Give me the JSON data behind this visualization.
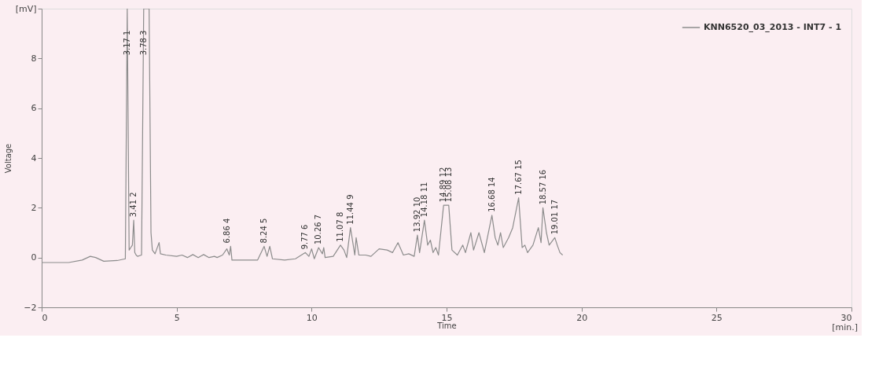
{
  "chart_data": {
    "type": "line",
    "xlabel": "Time",
    "ylabel": "Voltage",
    "xlim": [
      0,
      30
    ],
    "xticks": [
      0,
      5,
      10,
      15,
      20,
      25,
      30
    ],
    "ylim": [
      -2,
      10
    ],
    "yticks": [
      -2,
      0,
      2,
      4,
      6,
      8,
      {
        "value": 10,
        "label": "[mV]"
      }
    ],
    "grid": false,
    "legend": "top right",
    "marker": "none",
    "line_style": "solid",
    "series": [
      {
        "name": "KNN6520_03_2013 - INT7 - 1",
        "color": "#8c8c8c",
        "x": [
          0,
          1,
          1.5,
          1.8,
          2.0,
          2.3,
          2.8,
          3.1,
          3.17,
          3.24,
          3.3,
          3.36,
          3.41,
          3.45,
          3.5,
          3.55,
          3.7,
          3.78,
          3.98,
          4.05,
          4.1,
          4.2,
          4.35,
          4.4,
          4.6,
          5.0,
          5.2,
          5.4,
          5.6,
          5.8,
          6.0,
          6.2,
          6.4,
          6.5,
          6.7,
          6.86,
          6.95,
          7.0,
          7.05,
          7.5,
          8.0,
          8.24,
          8.35,
          8.45,
          8.55,
          9.0,
          9.4,
          9.77,
          9.9,
          10.0,
          10.1,
          10.26,
          10.4,
          10.45,
          10.5,
          10.8,
          11.07,
          11.2,
          11.3,
          11.44,
          11.6,
          11.65,
          11.75,
          12.0,
          12.2,
          12.5,
          12.8,
          13.0,
          13.2,
          13.4,
          13.6,
          13.8,
          13.92,
          14.0,
          14.18,
          14.3,
          14.4,
          14.5,
          14.6,
          14.7,
          14.89,
          15.08,
          15.2,
          15.4,
          15.6,
          15.7,
          15.9,
          16.0,
          16.2,
          16.4,
          16.68,
          16.8,
          16.9,
          17.0,
          17.1,
          17.3,
          17.45,
          17.67,
          17.8,
          17.9,
          18.0,
          18.2,
          18.4,
          18.5,
          18.57,
          18.7,
          18.8,
          19.01,
          19.1,
          19.2,
          19.3
        ],
        "values": [
          -0.2,
          -0.2,
          -0.1,
          0.05,
          0.0,
          -0.15,
          -0.12,
          -0.05,
          10,
          0.3,
          0.4,
          0.5,
          1.5,
          0.2,
          0.1,
          0.05,
          0.1,
          10,
          10,
          1.0,
          0.3,
          0.15,
          0.6,
          0.15,
          0.1,
          0.05,
          0.1,
          0.0,
          0.12,
          0.0,
          0.12,
          0.0,
          0.05,
          0.0,
          0.1,
          0.35,
          0.1,
          0.45,
          -0.1,
          -0.1,
          -0.1,
          0.45,
          0.05,
          0.45,
          -0.05,
          -0.1,
          -0.05,
          0.2,
          0.05,
          0.35,
          -0.05,
          0.4,
          0.15,
          0.4,
          0.0,
          0.05,
          0.5,
          0.3,
          0.0,
          1.2,
          0.1,
          0.8,
          0.1,
          0.1,
          0.05,
          0.35,
          0.3,
          0.2,
          0.6,
          0.1,
          0.15,
          0.05,
          0.9,
          0.2,
          1.5,
          0.5,
          0.7,
          0.2,
          0.4,
          0.1,
          2.1,
          2.1,
          0.3,
          0.1,
          0.5,
          0.2,
          1.0,
          0.3,
          1.0,
          0.2,
          1.7,
          0.8,
          0.5,
          1.0,
          0.4,
          0.8,
          1.2,
          2.4,
          0.4,
          0.5,
          0.2,
          0.5,
          1.2,
          0.6,
          2.0,
          1.0,
          0.5,
          0.8,
          0.5,
          0.2,
          0.1
        ]
      }
    ],
    "annotations": [
      {
        "text": "3.17   1",
        "x": 3.17,
        "y": 8
      },
      {
        "text": "3.41   2",
        "x": 3.41,
        "y": 1.5
      },
      {
        "text": "3.78   3",
        "x": 3.78,
        "y": 8
      },
      {
        "text": "6.86   4",
        "x": 6.86,
        "y": 0.45
      },
      {
        "text": "8.24   5",
        "x": 8.24,
        "y": 0.45
      },
      {
        "text": "9.77   6",
        "x": 9.77,
        "y": 0.2
      },
      {
        "text": "10.26   7",
        "x": 10.26,
        "y": 0.4
      },
      {
        "text": "11.07   8",
        "x": 11.07,
        "y": 0.5
      },
      {
        "text": "11.44   9",
        "x": 11.44,
        "y": 1.2
      },
      {
        "text": "13.92   10",
        "x": 13.92,
        "y": 0.9
      },
      {
        "text": "14.18   11",
        "x": 14.18,
        "y": 1.5
      },
      {
        "text": "14.89   12",
        "x": 14.89,
        "y": 2.1
      },
      {
        "text": "15.08   13",
        "x": 15.08,
        "y": 2.1
      },
      {
        "text": "16.68   14",
        "x": 16.68,
        "y": 1.7
      },
      {
        "text": "17.67   15",
        "x": 17.67,
        "y": 2.4
      },
      {
        "text": "18.57   16",
        "x": 18.57,
        "y": 2.0
      },
      {
        "text": "19.01   17",
        "x": 19.01,
        "y": 0.8
      },
      "[min.]"
    ]
  }
}
